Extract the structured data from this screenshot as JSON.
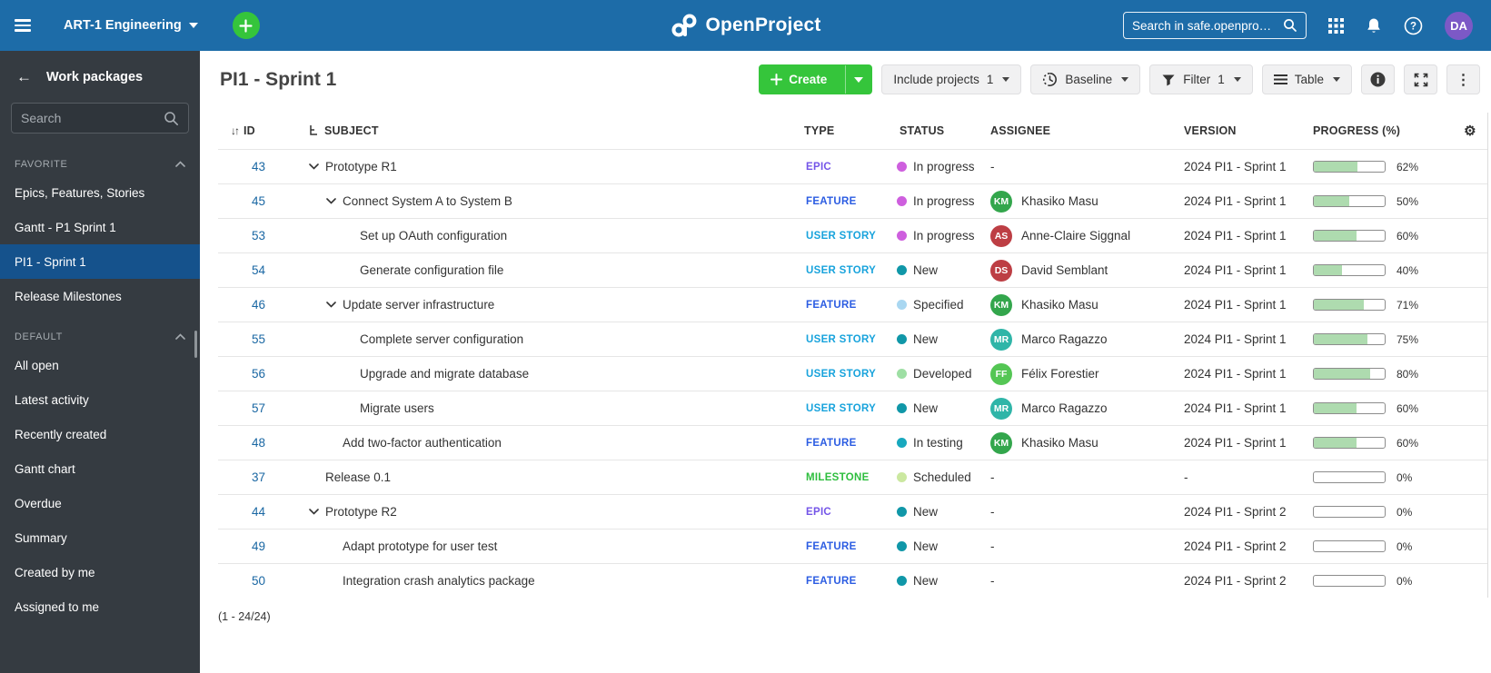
{
  "icons": {
    "back_arrow": "←",
    "sort": "↓↑",
    "gear": "⚙",
    "kebab": "⋮",
    "dash": "-"
  },
  "colors": {
    "topbar": "#1D6CA8",
    "accent_green": "#35C53B",
    "sidebar_selected": "#15528C",
    "link_blue": "#1A67A3",
    "progress_fill": "#AEDBAF",
    "user_avatar": "#7C59C6",
    "type": {
      "EPIC": "#7455E8",
      "FEATURE": "#2B5CE2",
      "USER STORY": "#18A3DC",
      "MILESTONE": "#2EBE3E"
    },
    "status": {
      "In progress": "#CE5FDE",
      "New": "#1097A8",
      "Specified": "#A9D7F1",
      "Developed": "#9EDFA4",
      "In testing": "#18A8BE",
      "Scheduled": "#CBE8A0"
    },
    "avatars": {
      "KM": "#33A64C",
      "AS": "#BD3E44",
      "DS": "#BD3E44",
      "MR": "#2FB5A8",
      "FF": "#54C654"
    }
  },
  "topbar": {
    "project_name": "ART-1 Engineering",
    "logo_text": "OpenProject",
    "search_placeholder": "Search in safe.openpro…",
    "avatar_initials": "DA"
  },
  "sidebar": {
    "title": "Work packages",
    "search_placeholder": "Search",
    "selected_item": "PI1 - Sprint 1",
    "sections": [
      {
        "label": "FAVORITE",
        "items": [
          "Epics, Features, Stories",
          "Gantt - P1 Sprint 1",
          "PI1 - Sprint 1",
          "Release Milestones"
        ]
      },
      {
        "label": "DEFAULT",
        "items": [
          "All open",
          "Latest activity",
          "Recently created",
          "Gantt chart",
          "Overdue",
          "Summary",
          "Created by me",
          "Assigned to me"
        ]
      }
    ]
  },
  "toolbar": {
    "title": "PI1 - Sprint 1",
    "create_label": "Create",
    "include_projects_label": "Include projects",
    "include_projects_count": "1",
    "baseline_label": "Baseline",
    "filter_label": "Filter",
    "filter_count": "1",
    "table_label": "Table"
  },
  "table": {
    "columns": [
      "ID",
      "SUBJECT",
      "TYPE",
      "STATUS",
      "ASSIGNEE",
      "VERSION",
      "PROGRESS (%)"
    ],
    "empty_placeholder": "-",
    "footer": "(1 - 24/24)",
    "rows": [
      {
        "id": "43",
        "indent": 0,
        "expanded": true,
        "subject": "Prototype R1",
        "type": "EPIC",
        "status": "In progress",
        "assignee": null,
        "version": "2024 PI1 - Sprint 1",
        "progress": 62
      },
      {
        "id": "45",
        "indent": 1,
        "expanded": true,
        "subject": "Connect System A to System B",
        "type": "FEATURE",
        "status": "In progress",
        "assignee": {
          "initials": "KM",
          "name": "Khasiko Masu"
        },
        "version": "2024 PI1 - Sprint 1",
        "progress": 50
      },
      {
        "id": "53",
        "indent": 2,
        "expanded": false,
        "subject": "Set up OAuth configuration",
        "type": "USER STORY",
        "status": "In progress",
        "assignee": {
          "initials": "AS",
          "name": "Anne-Claire Siggnal"
        },
        "version": "2024 PI1 - Sprint 1",
        "progress": 60
      },
      {
        "id": "54",
        "indent": 2,
        "expanded": false,
        "subject": "Generate configuration file",
        "type": "USER STORY",
        "status": "New",
        "assignee": {
          "initials": "DS",
          "name": "David Semblant"
        },
        "version": "2024 PI1 - Sprint 1",
        "progress": 40
      },
      {
        "id": "46",
        "indent": 1,
        "expanded": true,
        "subject": "Update server infrastructure",
        "type": "FEATURE",
        "status": "Specified",
        "assignee": {
          "initials": "KM",
          "name": "Khasiko Masu"
        },
        "version": "2024 PI1 - Sprint 1",
        "progress": 71
      },
      {
        "id": "55",
        "indent": 2,
        "expanded": false,
        "subject": "Complete server configuration",
        "type": "USER STORY",
        "status": "New",
        "assignee": {
          "initials": "MR",
          "name": "Marco Ragazzo"
        },
        "version": "2024 PI1 - Sprint 1",
        "progress": 75
      },
      {
        "id": "56",
        "indent": 2,
        "expanded": false,
        "subject": "Upgrade and migrate database",
        "type": "USER STORY",
        "status": "Developed",
        "assignee": {
          "initials": "FF",
          "name": "Félix Forestier"
        },
        "version": "2024 PI1 - Sprint 1",
        "progress": 80
      },
      {
        "id": "57",
        "indent": 2,
        "expanded": false,
        "subject": "Migrate users",
        "type": "USER STORY",
        "status": "New",
        "assignee": {
          "initials": "MR",
          "name": "Marco Ragazzo"
        },
        "version": "2024 PI1 - Sprint 1",
        "progress": 60
      },
      {
        "id": "48",
        "indent": 1,
        "expanded": false,
        "subject": "Add two-factor authentication",
        "type": "FEATURE",
        "status": "In testing",
        "assignee": {
          "initials": "KM",
          "name": "Khasiko Masu"
        },
        "version": "2024 PI1 - Sprint 1",
        "progress": 60
      },
      {
        "id": "37",
        "indent": 0,
        "expanded": false,
        "subject": "Release 0.1",
        "type": "MILESTONE",
        "status": "Scheduled",
        "assignee": null,
        "version": null,
        "progress": 0
      },
      {
        "id": "44",
        "indent": 0,
        "expanded": true,
        "subject": "Prototype R2",
        "type": "EPIC",
        "status": "New",
        "assignee": null,
        "version": "2024 PI1 - Sprint 2",
        "progress": 0
      },
      {
        "id": "49",
        "indent": 1,
        "expanded": false,
        "subject": "Adapt prototype for user test",
        "type": "FEATURE",
        "status": "New",
        "assignee": null,
        "version": "2024 PI1 - Sprint 2",
        "progress": 0
      },
      {
        "id": "50",
        "indent": 1,
        "expanded": false,
        "subject": "Integration crash analytics package",
        "type": "FEATURE",
        "status": "New",
        "assignee": null,
        "version": "2024 PI1 - Sprint 2",
        "progress": 0
      }
    ]
  }
}
